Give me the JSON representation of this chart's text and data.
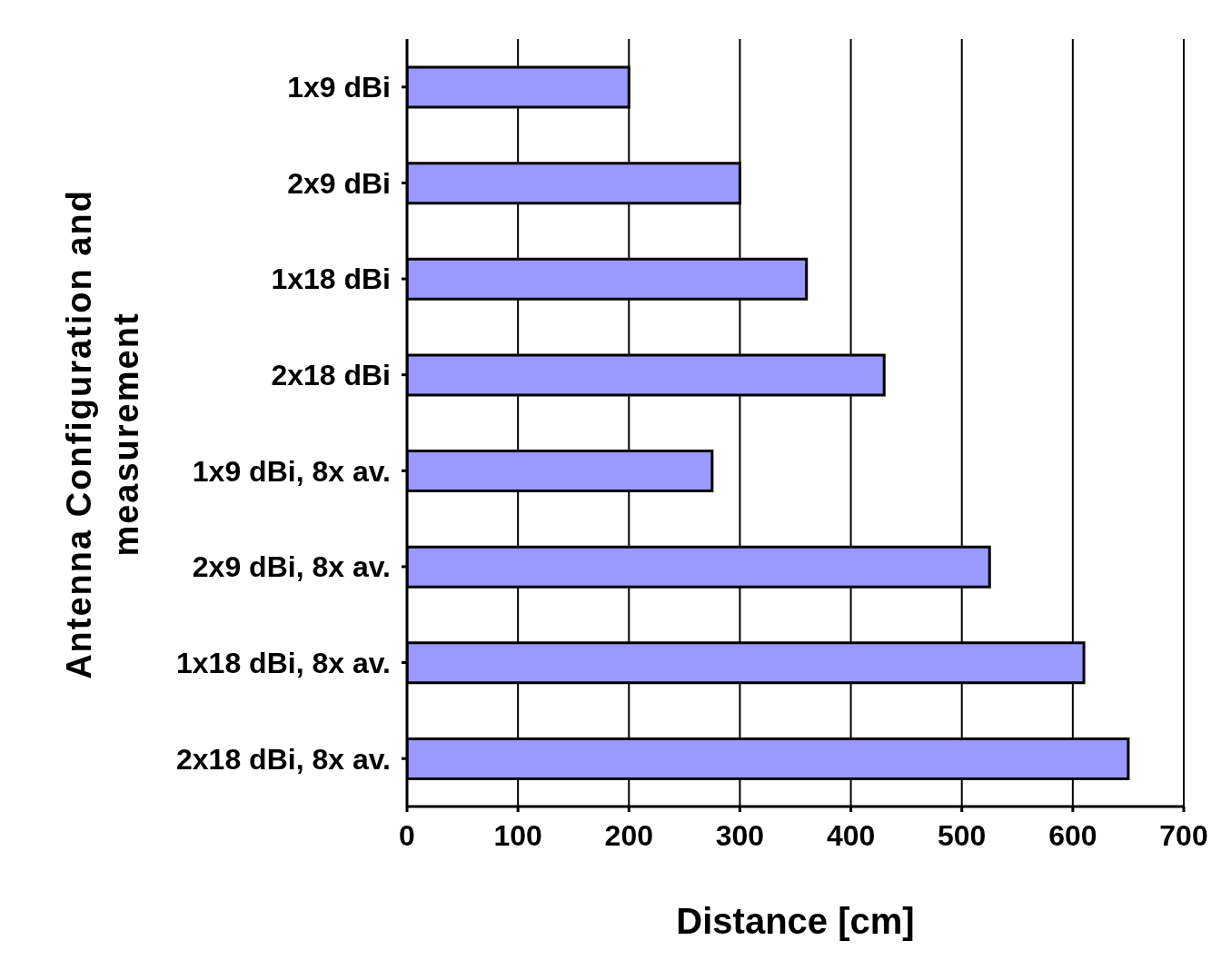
{
  "chart_data": {
    "type": "bar",
    "orientation": "horizontal",
    "xlabel": "Distance [cm]",
    "ylabel": "Antenna Configuration and measurement",
    "categories": [
      "1x9 dBi",
      "2x9 dBi",
      "1x18 dBi",
      "2x18 dBi",
      "1x9 dBi, 8x av.",
      "2x9 dBi, 8x av.",
      "1x18 dBi, 8x av.",
      "2x18 dBi, 8x av."
    ],
    "values": [
      200,
      300,
      360,
      430,
      275,
      525,
      610,
      650
    ],
    "color": "#9999ff",
    "xlim": [
      0,
      700
    ],
    "xticks": [
      0,
      100,
      200,
      300,
      400,
      500,
      600,
      700
    ],
    "grid": "x"
  }
}
